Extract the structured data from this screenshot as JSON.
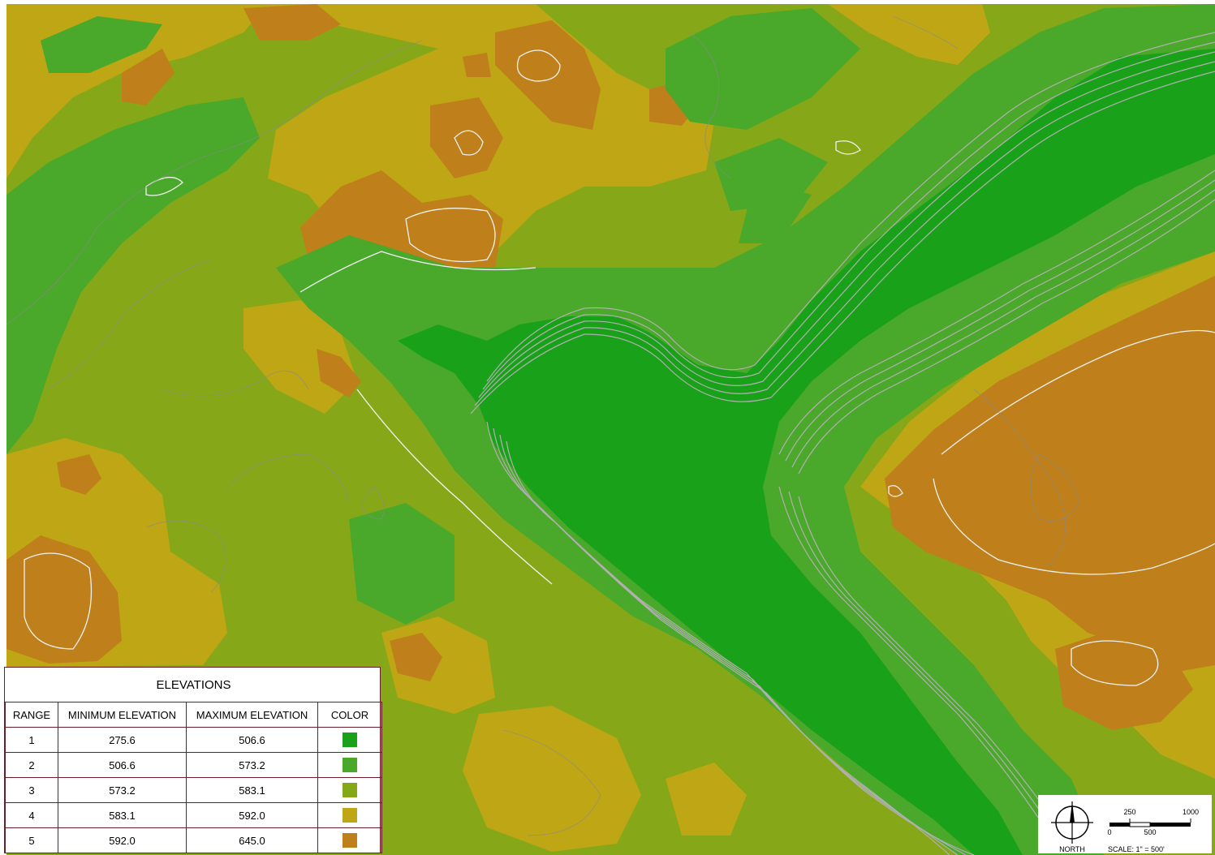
{
  "legend": {
    "title": "ELEVATIONS",
    "headers": {
      "range": "RANGE",
      "min": "MINIMUM ELEVATION",
      "max": "MAXIMUM ELEVATION",
      "color": "COLOR"
    },
    "rows": [
      {
        "range": "1",
        "min": "275.6",
        "max": "506.6",
        "color": "#1aa11a"
      },
      {
        "range": "2",
        "min": "506.6",
        "max": "573.2",
        "color": "#4aa82a"
      },
      {
        "range": "3",
        "min": "573.2",
        "max": "583.1",
        "color": "#86a818"
      },
      {
        "range": "4",
        "min": "583.1",
        "max": "592.0",
        "color": "#bfa614"
      },
      {
        "range": "5",
        "min": "592.0",
        "max": "645.0",
        "color": "#bf7f1a"
      }
    ]
  },
  "scale": {
    "north_label": "NORTH",
    "tick_250": "250",
    "tick_1000": "1000",
    "tick_0": "0",
    "tick_500": "500",
    "scale_text": "SCALE: 1\" = 500'"
  },
  "colors": {
    "range1": "#1aa11a",
    "range2": "#4aa82a",
    "range3": "#86a818",
    "range4": "#bfa614",
    "range5": "#bf7f1a",
    "contour_light": "#e8e8e8",
    "contour_gray": "#9a9a9a",
    "legend_border": "#6b1e2a"
  }
}
